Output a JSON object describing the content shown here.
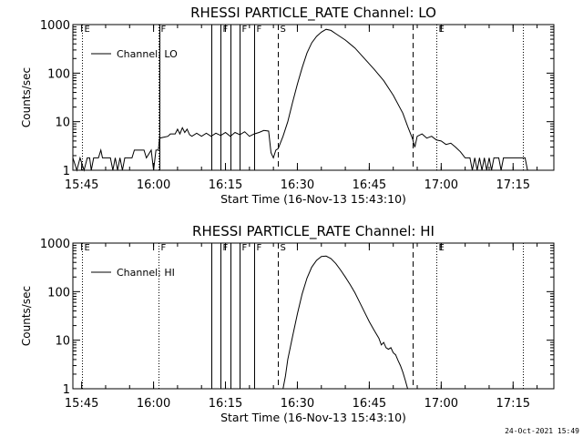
{
  "footer_date": "24-Oct-2021 15:49",
  "chart_data": [
    {
      "type": "line",
      "title": "RHESSI PARTICLE_RATE Channel: LO",
      "xlabel": "Start Time (16-Nov-13 15:43:10)",
      "ylabel": "Counts/sec",
      "yscale": "log",
      "ylim": [
        1,
        1000
      ],
      "xlim": [
        "15:43:10",
        "17:23:30"
      ],
      "x_ticks": [
        "15:45",
        "16:00",
        "16:15",
        "16:30",
        "16:45",
        "17:00",
        "17:15"
      ],
      "y_ticks": [
        "1",
        "10",
        "100",
        "1000"
      ],
      "grid": false,
      "legend": {
        "position": "top-left",
        "entries": [
          "Channel: LO"
        ]
      },
      "markers": [
        {
          "label": "E",
          "time": "15:45:00",
          "style": "dotted"
        },
        {
          "label": "F",
          "time": "16:01:00",
          "style": "dotted"
        },
        {
          "label": "",
          "time": "16:01:15",
          "style": "solid"
        },
        {
          "label": "",
          "time": "16:12:00",
          "style": "solid"
        },
        {
          "label": "F",
          "time": "16:14:00",
          "style": "solid"
        },
        {
          "label": "",
          "time": "16:16:00",
          "style": "solid"
        },
        {
          "label": "F",
          "time": "16:18:00",
          "style": "solid"
        },
        {
          "label": "F",
          "time": "16:21:00",
          "style": "solid"
        },
        {
          "label": "S",
          "time": "16:26:00",
          "style": "dashed"
        },
        {
          "label": "",
          "time": "16:54:00",
          "style": "dashed"
        },
        {
          "label": "E",
          "time": "16:59:00",
          "style": "dotted"
        },
        {
          "label": "",
          "time": "17:17:00",
          "style": "dotted"
        }
      ],
      "series": [
        {
          "name": "Channel: LO",
          "points": [
            [
              "15:43:10",
              1.8
            ],
            [
              "15:44:00",
              1.0
            ],
            [
              "15:44:40",
              1.8
            ],
            [
              "15:45:30",
              1.0
            ],
            [
              "15:46:10",
              1.8
            ],
            [
              "15:46:40",
              1.8
            ],
            [
              "15:47:00",
              1.0
            ],
            [
              "15:47:30",
              1.8
            ],
            [
              "15:48:30",
              1.8
            ],
            [
              "15:49:00",
              2.6
            ],
            [
              "15:49:20",
              1.8
            ],
            [
              "15:51:00",
              1.8
            ],
            [
              "15:51:30",
              1.0
            ],
            [
              "15:52:00",
              1.8
            ],
            [
              "15:52:30",
              1.0
            ],
            [
              "15:53:00",
              1.8
            ],
            [
              "15:53:30",
              1.0
            ],
            [
              "15:54:00",
              1.8
            ],
            [
              "15:55:30",
              1.8
            ],
            [
              "15:56:00",
              2.6
            ],
            [
              "15:58:00",
              2.6
            ],
            [
              "15:58:30",
              1.8
            ],
            [
              "15:59:30",
              2.6
            ],
            [
              "16:00:00",
              1.0
            ],
            [
              "16:00:30",
              2.6
            ],
            [
              "16:01:00",
              2.6
            ],
            [
              "16:01:15",
              4.6
            ],
            [
              "16:03:00",
              5.0
            ],
            [
              "16:03:30",
              5.6
            ],
            [
              "16:04:30",
              5.6
            ],
            [
              "16:05:00",
              7.0
            ],
            [
              "16:05:30",
              5.6
            ],
            [
              "16:06:00",
              7.5
            ],
            [
              "16:06:30",
              6.0
            ],
            [
              "16:07:00",
              7.0
            ],
            [
              "16:07:30",
              5.4
            ],
            [
              "16:08:00",
              5.0
            ],
            [
              "16:09:00",
              5.8
            ],
            [
              "16:10:00",
              5.0
            ],
            [
              "16:11:00",
              5.8
            ],
            [
              "16:12:00",
              5.0
            ],
            [
              "16:13:00",
              5.8
            ],
            [
              "16:14:00",
              5.2
            ],
            [
              "16:15:00",
              6.0
            ],
            [
              "16:16:00",
              5.0
            ],
            [
              "16:17:00",
              6.0
            ],
            [
              "16:18:00",
              5.4
            ],
            [
              "16:19:00",
              6.2
            ],
            [
              "16:20:00",
              5.0
            ],
            [
              "16:21:00",
              5.6
            ],
            [
              "16:22:00",
              6.0
            ],
            [
              "16:23:00",
              6.6
            ],
            [
              "16:24:00",
              6.4
            ],
            [
              "16:24:30",
              2.3
            ],
            [
              "16:25:00",
              1.8
            ],
            [
              "16:25:30",
              2.6
            ],
            [
              "16:26:00",
              2.8
            ],
            [
              "16:27:00",
              5.0
            ],
            [
              "16:28:00",
              10.0
            ],
            [
              "16:29:00",
              25.0
            ],
            [
              "16:30:00",
              60.0
            ],
            [
              "16:31:00",
              130.0
            ],
            [
              "16:32:00",
              260.0
            ],
            [
              "16:33:00",
              420.0
            ],
            [
              "16:34:00",
              570.0
            ],
            [
              "16:35:00",
              700.0
            ],
            [
              "16:36:00",
              800.0
            ],
            [
              "16:37:00",
              760.0
            ],
            [
              "16:38:00",
              650.0
            ],
            [
              "16:40:00",
              480.0
            ],
            [
              "16:42:00",
              330.0
            ],
            [
              "16:44:00",
              200.0
            ],
            [
              "16:46:00",
              120.0
            ],
            [
              "16:48:00",
              70.0
            ],
            [
              "16:50:00",
              35.0
            ],
            [
              "16:52:00",
              15.0
            ],
            [
              "16:53:00",
              8.0
            ],
            [
              "16:54:00",
              4.5
            ],
            [
              "16:54:30",
              3.0
            ],
            [
              "16:55:00",
              5.0
            ],
            [
              "16:56:00",
              5.6
            ],
            [
              "16:57:00",
              4.6
            ],
            [
              "16:58:00",
              5.0
            ],
            [
              "16:59:00",
              4.2
            ],
            [
              "17:00:00",
              4.0
            ],
            [
              "17:01:00",
              3.4
            ],
            [
              "17:02:00",
              3.6
            ],
            [
              "17:03:00",
              3.0
            ],
            [
              "17:04:00",
              2.4
            ],
            [
              "17:05:00",
              1.8
            ],
            [
              "17:06:00",
              1.8
            ],
            [
              "17:06:30",
              1.0
            ],
            [
              "17:07:00",
              1.8
            ],
            [
              "17:07:30",
              1.0
            ],
            [
              "17:08:00",
              1.8
            ],
            [
              "17:08:30",
              1.0
            ],
            [
              "17:09:00",
              1.8
            ],
            [
              "17:09:30",
              1.0
            ],
            [
              "17:10:00",
              1.8
            ],
            [
              "17:10:30",
              1.0
            ],
            [
              "17:11:00",
              1.8
            ],
            [
              "17:12:00",
              1.8
            ],
            [
              "17:12:30",
              1.0
            ],
            [
              "17:13:00",
              1.8
            ],
            [
              "17:17:30",
              1.8
            ],
            [
              "17:18:00",
              1.0
            ]
          ]
        }
      ]
    },
    {
      "type": "line",
      "title": "RHESSI PARTICLE_RATE Channel: HI",
      "xlabel": "Start Time (16-Nov-13 15:43:10)",
      "ylabel": "Counts/sec",
      "yscale": "log",
      "ylim": [
        1,
        1000
      ],
      "xlim": [
        "15:43:10",
        "17:23:30"
      ],
      "x_ticks": [
        "15:45",
        "16:00",
        "16:15",
        "16:30",
        "16:45",
        "17:00",
        "17:15"
      ],
      "y_ticks": [
        "1",
        "10",
        "100",
        "1000"
      ],
      "grid": false,
      "legend": {
        "position": "top-left",
        "entries": [
          "Channel: HI"
        ]
      },
      "markers": [
        {
          "label": "E",
          "time": "15:45:00",
          "style": "dotted"
        },
        {
          "label": "F",
          "time": "16:01:00",
          "style": "dotted"
        },
        {
          "label": "",
          "time": "16:12:00",
          "style": "solid"
        },
        {
          "label": "F",
          "time": "16:14:00",
          "style": "solid"
        },
        {
          "label": "",
          "time": "16:16:00",
          "style": "solid"
        },
        {
          "label": "F",
          "time": "16:18:00",
          "style": "solid"
        },
        {
          "label": "F",
          "time": "16:21:00",
          "style": "solid"
        },
        {
          "label": "S",
          "time": "16:26:00",
          "style": "dashed"
        },
        {
          "label": "",
          "time": "16:54:00",
          "style": "dashed"
        },
        {
          "label": "E",
          "time": "16:59:00",
          "style": "dotted"
        },
        {
          "label": "",
          "time": "17:17:00",
          "style": "dotted"
        }
      ],
      "series": [
        {
          "name": "Channel: HI",
          "points": [
            [
              "16:27:00",
              1.0
            ],
            [
              "16:27:30",
              1.8
            ],
            [
              "16:28:00",
              4.0
            ],
            [
              "16:29:00",
              12.0
            ],
            [
              "16:30:00",
              35.0
            ],
            [
              "16:31:00",
              90.0
            ],
            [
              "16:32:00",
              190.0
            ],
            [
              "16:33:00",
              320.0
            ],
            [
              "16:34:00",
              440.0
            ],
            [
              "16:35:00",
              530.0
            ],
            [
              "16:36:00",
              540.0
            ],
            [
              "16:37:00",
              480.0
            ],
            [
              "16:38:00",
              380.0
            ],
            [
              "16:39:00",
              280.0
            ],
            [
              "16:40:00",
              200.0
            ],
            [
              "16:41:00",
              140.0
            ],
            [
              "16:42:00",
              95.0
            ],
            [
              "16:43:00",
              60.0
            ],
            [
              "16:44:00",
              38.0
            ],
            [
              "16:45:00",
              24.0
            ],
            [
              "16:46:00",
              16.0
            ],
            [
              "16:47:00",
              11.0
            ],
            [
              "16:47:30",
              8.0
            ],
            [
              "16:48:00",
              9.0
            ],
            [
              "16:48:30",
              7.0
            ],
            [
              "16:49:00",
              6.5
            ],
            [
              "16:49:30",
              7.0
            ],
            [
              "16:50:00",
              5.5
            ],
            [
              "16:50:30",
              5.0
            ],
            [
              "16:51:00",
              3.8
            ],
            [
              "16:51:30",
              3.0
            ],
            [
              "16:52:00",
              2.2
            ],
            [
              "16:52:30",
              1.5
            ],
            [
              "16:53:00",
              1.0
            ]
          ]
        }
      ]
    }
  ]
}
